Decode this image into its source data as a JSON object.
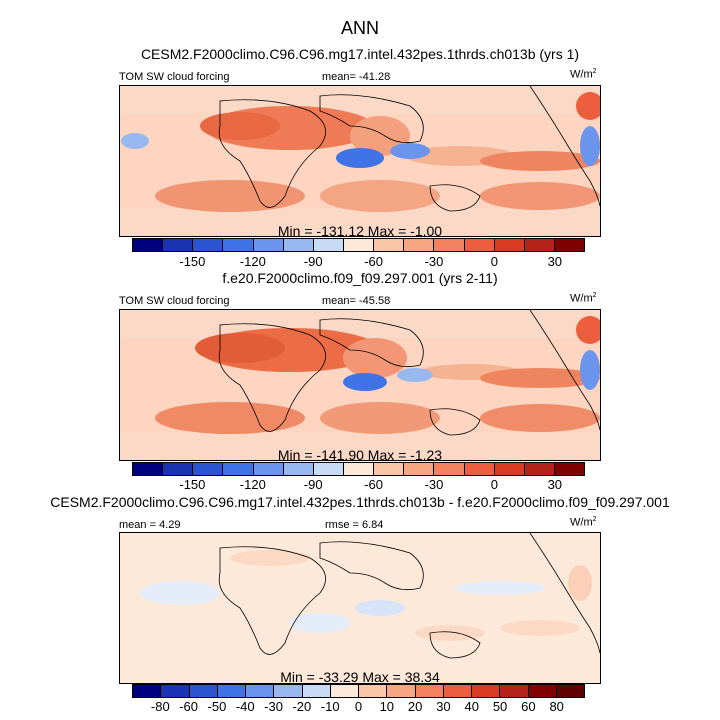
{
  "title": "ANN",
  "chart_data": [
    {
      "type": "heatmap",
      "title": "CESM2.F2000climo.C96.C96.mg17.intel.432pes.1thrds.ch013b (yrs 1)",
      "variable": "TOM SW cloud forcing",
      "units": "W/m",
      "units_exp": "2",
      "mean_label": "mean=",
      "mean": "-41.28",
      "min_max": "Min = -131.12 Max =  -1.00",
      "colorbar_ticks": [
        "-150",
        "-120",
        "-90",
        "-60",
        "-30",
        "0",
        "30"
      ]
    },
    {
      "type": "heatmap",
      "title": "f.e20.F2000climo.f09_f09.297.001 (yrs 2-11)",
      "variable": "TOM SW cloud forcing",
      "units": "W/m",
      "units_exp": "2",
      "mean_label": "mean=",
      "mean": "-45.58",
      "min_max": "Min = -141.90 Max =  -1.23",
      "colorbar_ticks": [
        "-150",
        "-120",
        "-90",
        "-60",
        "-30",
        "0",
        "30"
      ]
    },
    {
      "type": "heatmap",
      "title": "CESM2.F2000climo.C96.C96.mg17.intel.432pes.1thrds.ch013b - f.e20.F2000climo.f09_f09.297.001",
      "mean_label": "mean =",
      "mean": "4.29",
      "rmse_label": "rmse =",
      "rmse": "6.84",
      "units": "W/m",
      "units_exp": "2",
      "min_max": "Min = -33.29 Max =  38.34",
      "colorbar_ticks": [
        "-80",
        "-60",
        "-50",
        "-40",
        "-30",
        "-20",
        "-10",
        "0",
        "10",
        "20",
        "30",
        "40",
        "50",
        "60",
        "80"
      ]
    }
  ],
  "colors": {
    "abs_scale": [
      "#000080",
      "#1a33b3",
      "#2b55cf",
      "#3f73e6",
      "#6b95ec",
      "#9ab8f0",
      "#c7daf6",
      "#fde9d9",
      "#f9c6a8",
      "#f6a683",
      "#f2825f",
      "#ec5e3d",
      "#d93a22",
      "#b5221a",
      "#800000"
    ],
    "diff_scale": [
      "#000080",
      "#1a33b3",
      "#2b55cf",
      "#3f73e6",
      "#6b95ec",
      "#9ab8f0",
      "#c7daf6",
      "#fde9d9",
      "#f9c6a8",
      "#f6a683",
      "#f2825f",
      "#ec5e3d",
      "#d93a22",
      "#b5221a",
      "#800000",
      "#600000"
    ]
  }
}
